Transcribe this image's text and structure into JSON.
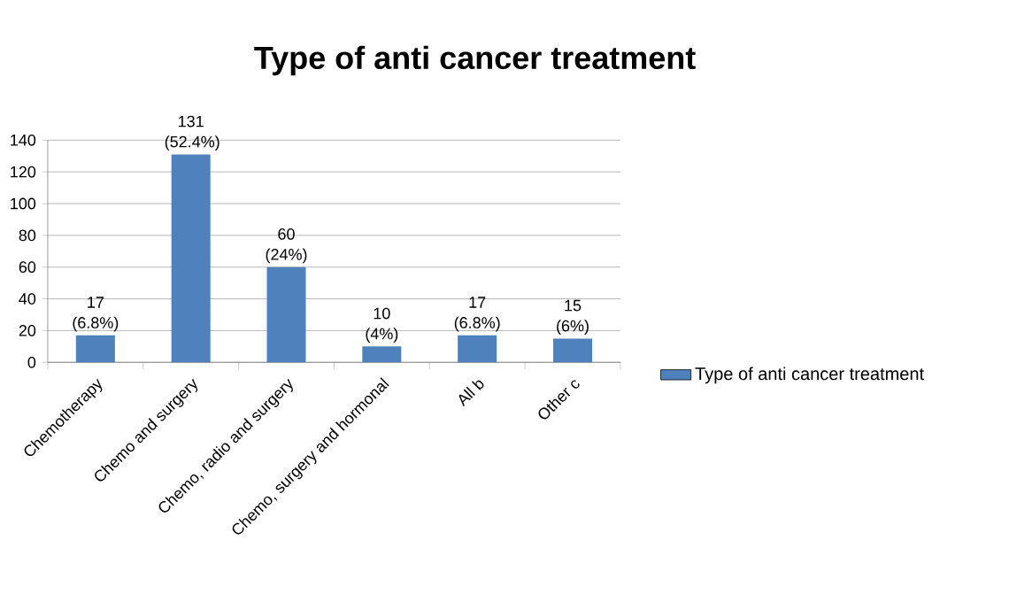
{
  "chart_data": {
    "type": "bar",
    "title": "Type of anti cancer treatment",
    "categories": [
      "Chemotherapy",
      "Chemo and surgery",
      "Chemo, radio and surgery",
      "Chemo, surgery and hormonal",
      "All b",
      "Other c"
    ],
    "series": [
      {
        "name": "Type of anti cancer treatment",
        "color": "#4f81bd",
        "values": [
          17,
          131,
          60,
          10,
          17,
          15
        ],
        "value_labels": [
          "17 (6.8%)",
          "131 (52.4%)",
          "60 (24%)",
          "10 (4%)",
          "17 (6.8%)",
          "15 (6%)"
        ]
      }
    ],
    "ylim": [
      0,
      140
    ],
    "yticks": [
      0,
      20,
      40,
      60,
      80,
      100,
      120,
      140
    ],
    "grid": "y",
    "legend": "right"
  }
}
